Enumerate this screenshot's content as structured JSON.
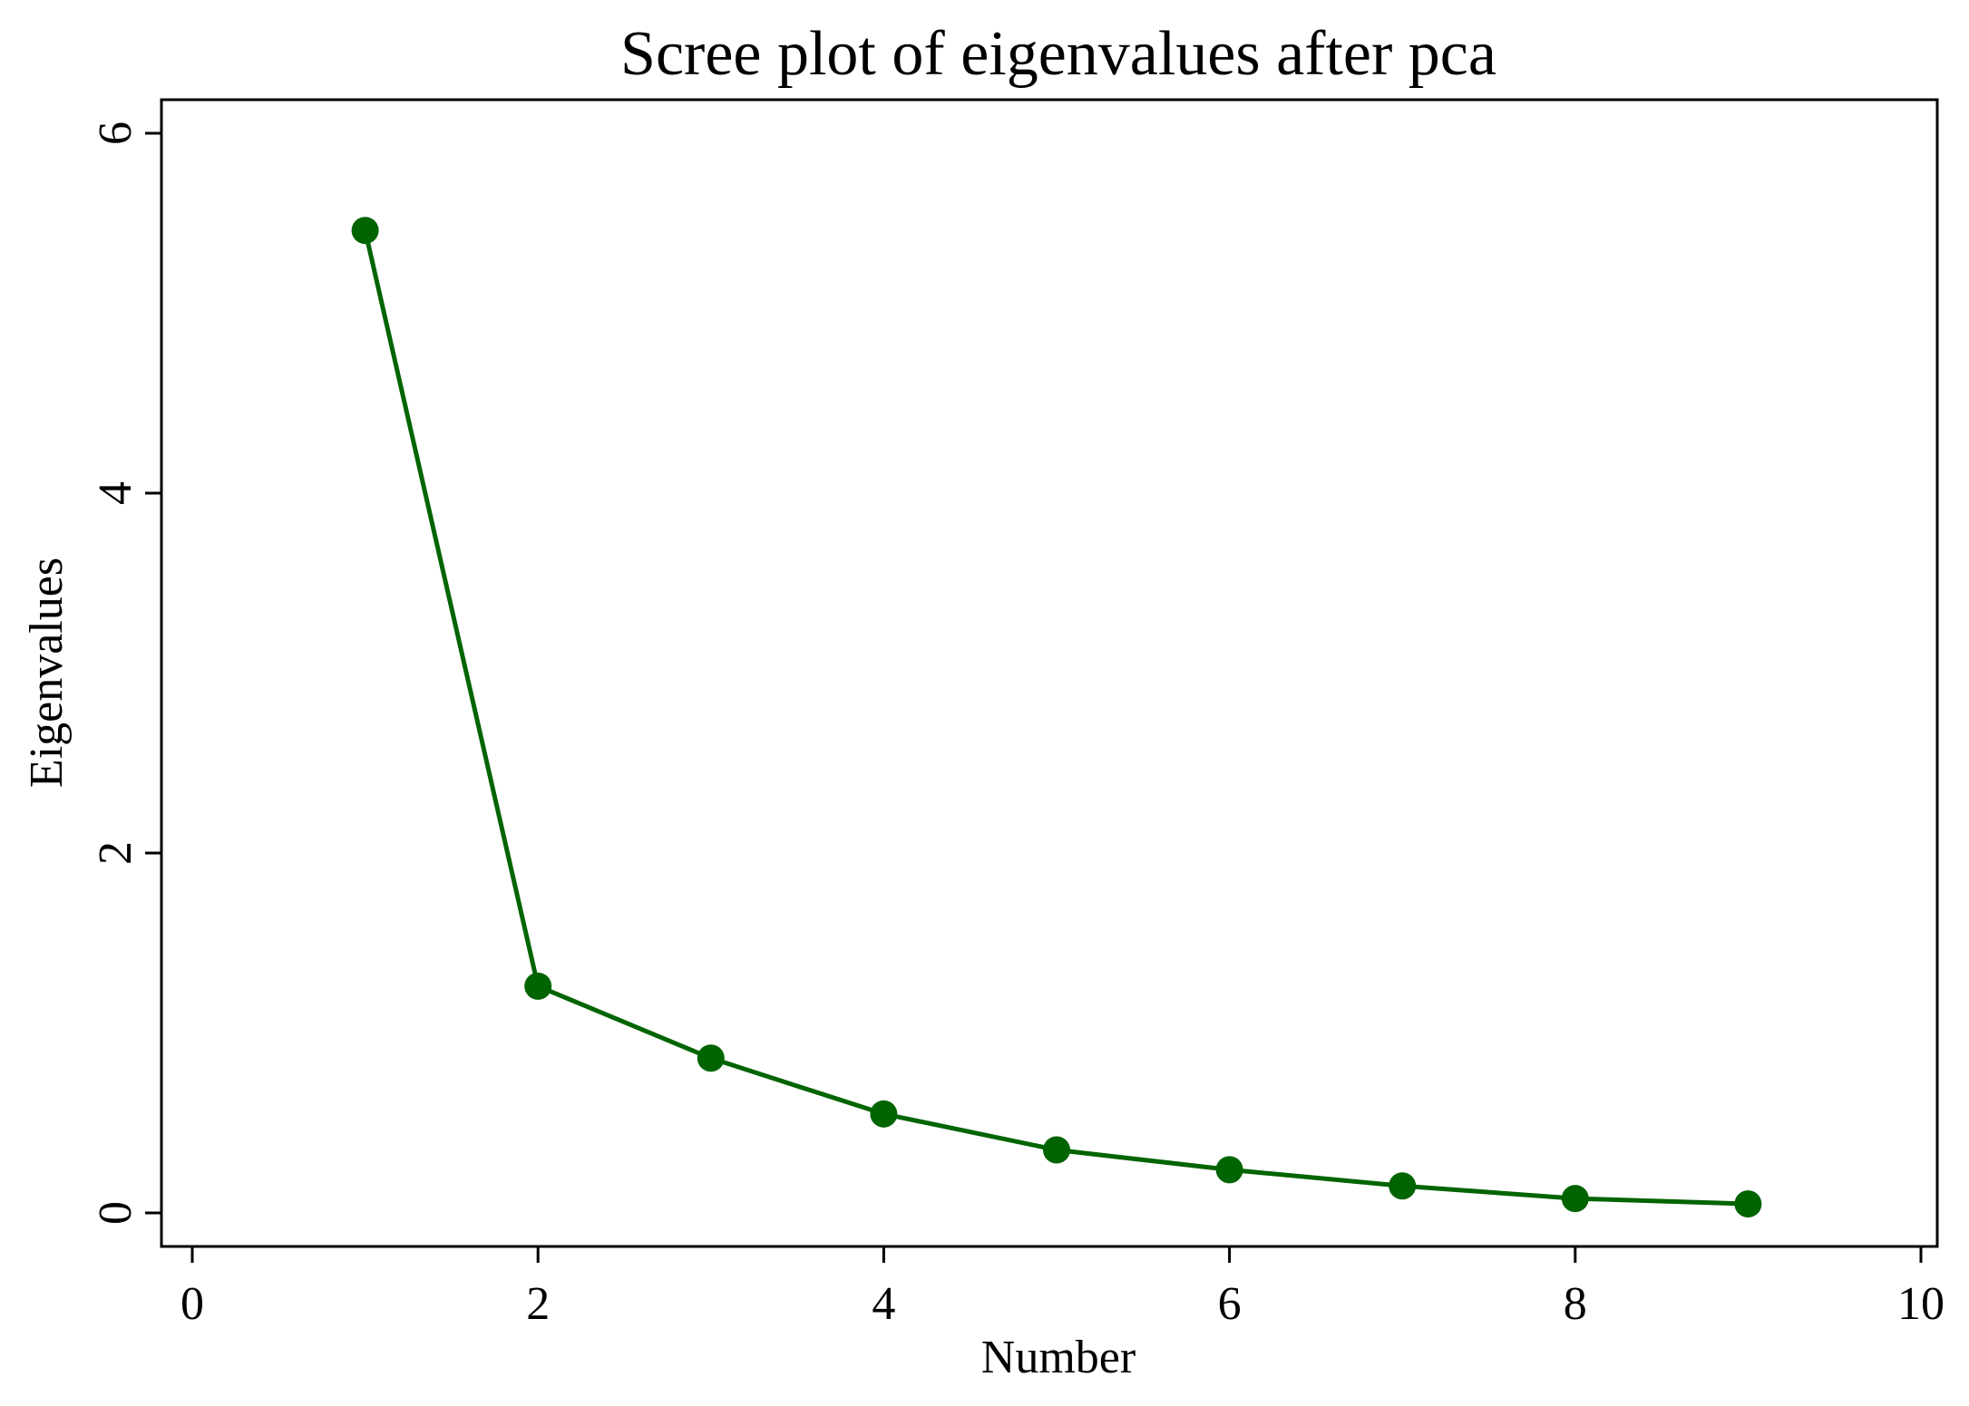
{
  "chart_data": {
    "type": "line",
    "title": "Scree plot of eigenvalues after pca",
    "xlabel": "Number",
    "ylabel": "Eigenvalues",
    "xlim": [
      0,
      10
    ],
    "ylim": [
      0,
      6
    ],
    "xticks": [
      0,
      2,
      4,
      6,
      8,
      10
    ],
    "yticks": [
      0,
      2,
      4,
      6
    ],
    "grid": false,
    "legend": "none",
    "series": [
      {
        "x": [
          1,
          2,
          3,
          4,
          5,
          6,
          7,
          8,
          9
        ],
        "values": [
          5.46,
          1.26,
          0.86,
          0.55,
          0.35,
          0.24,
          0.15,
          0.08,
          0.05
        ],
        "color": "#006400",
        "marker": "filled-circle"
      }
    ]
  }
}
